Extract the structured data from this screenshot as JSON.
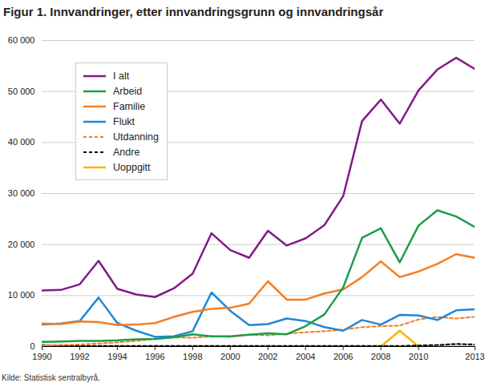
{
  "chart_data": {
    "type": "line",
    "title": "Figur 1.  Innvandringer, etter innvandringsgrunn og innvandringsår",
    "caption": "Kilde: Statistisk sentralbyrå.",
    "x": [
      1990,
      1991,
      1992,
      1993,
      1994,
      1995,
      1996,
      1997,
      1998,
      1999,
      2000,
      2001,
      2002,
      2003,
      2004,
      2005,
      2006,
      2007,
      2008,
      2009,
      2010,
      2011,
      2012,
      2013
    ],
    "series": [
      {
        "name": "I alt",
        "color": "#831a89",
        "line_style": "solid",
        "values": [
          11000,
          11100,
          12200,
          16800,
          11300,
          10200,
          9700,
          11400,
          14300,
          22200,
          18900,
          17400,
          22700,
          19800,
          21200,
          23800,
          29500,
          44200,
          48400,
          43700,
          50200,
          54300,
          56600,
          54400
        ]
      },
      {
        "name": "Arbeid",
        "color": "#1a9d49",
        "line_style": "solid",
        "values": [
          900,
          1000,
          1100,
          1100,
          1200,
          1400,
          1500,
          1800,
          2400,
          2000,
          2000,
          2300,
          2600,
          2400,
          4000,
          6300,
          11600,
          21300,
          23200,
          16500,
          23700,
          26700,
          25500,
          23400
        ]
      },
      {
        "name": "Familie",
        "color": "#f57d20",
        "line_style": "solid",
        "values": [
          4500,
          4400,
          4900,
          4800,
          4200,
          4300,
          4600,
          5800,
          6800,
          7400,
          7600,
          8400,
          12800,
          9200,
          9200,
          10400,
          11200,
          13600,
          16700,
          13600,
          14700,
          16200,
          18100,
          17400
        ]
      },
      {
        "name": "Flukt",
        "color": "#2287d4",
        "line_style": "solid",
        "values": [
          4300,
          4500,
          5000,
          9600,
          4600,
          3100,
          1900,
          2000,
          3000,
          10600,
          7000,
          4200,
          4400,
          5500,
          5000,
          3800,
          3100,
          5200,
          4300,
          6200,
          6100,
          5200,
          7100,
          7300
        ]
      },
      {
        "name": "Utdanning",
        "color": "#f57d20",
        "line_style": "dashed",
        "values": [
          200,
          300,
          400,
          600,
          800,
          1100,
          1500,
          1800,
          1700,
          2000,
          1900,
          2300,
          2200,
          2500,
          2800,
          3000,
          3300,
          3800,
          4000,
          4100,
          5300,
          5800,
          5500,
          5800
        ]
      },
      {
        "name": "Andre",
        "color": "#000000",
        "line_style": "dashed",
        "values": [
          300,
          200,
          100,
          100,
          100,
          100,
          100,
          100,
          100,
          100,
          100,
          100,
          100,
          100,
          100,
          100,
          100,
          100,
          100,
          100,
          200,
          300,
          500,
          400
        ]
      },
      {
        "name": "Uoppgitt",
        "color": "#f7b500",
        "line_style": "solid",
        "values": [
          0,
          0,
          0,
          0,
          0,
          0,
          0,
          0,
          0,
          0,
          0,
          0,
          0,
          0,
          0,
          0,
          0,
          0,
          0,
          3100,
          0,
          0,
          0,
          0
        ]
      }
    ],
    "xlim": [
      1990,
      2013
    ],
    "xticks": [
      1990,
      1992,
      1994,
      1996,
      1998,
      2000,
      2002,
      2004,
      2006,
      2008,
      2010,
      2013
    ],
    "ylim": [
      0,
      60000
    ],
    "yticks": [
      0,
      {
        "value": 10000,
        "label": "10 000"
      },
      {
        "value": 20000,
        "label": "20 000"
      },
      {
        "value": 30000,
        "label": "30 000"
      },
      {
        "value": 40000,
        "label": "40 000"
      },
      {
        "value": 50000,
        "label": "50 000"
      },
      {
        "value": 60000,
        "label": "60 000"
      }
    ],
    "grid": true,
    "legend": "top-left"
  }
}
